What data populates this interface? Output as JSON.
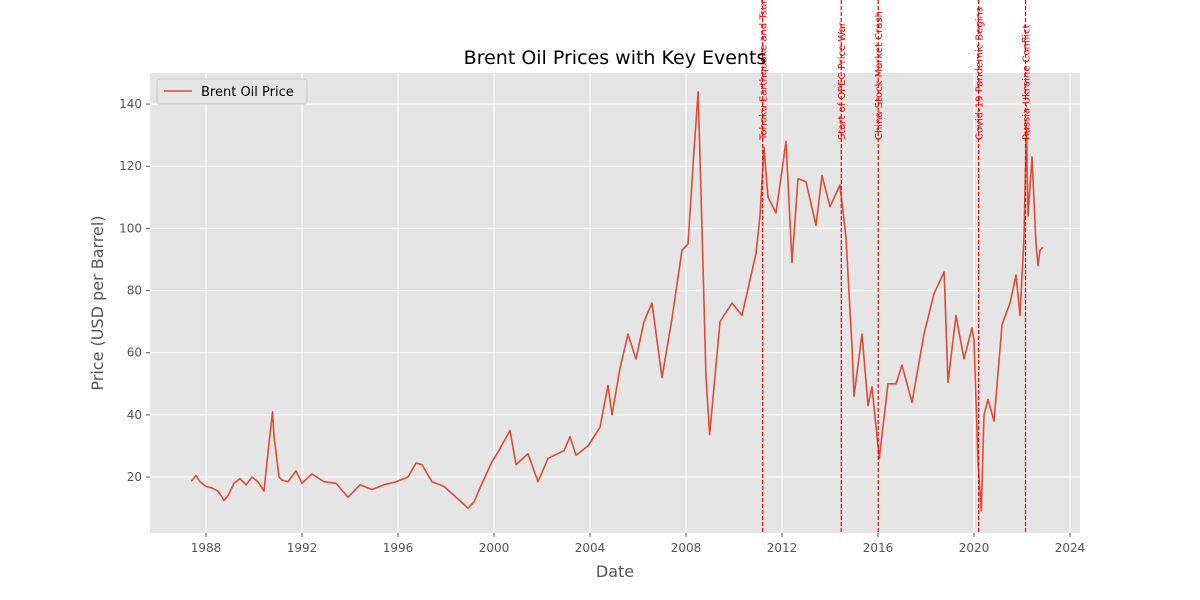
{
  "chart_data": {
    "type": "line",
    "title": "Brent Oil Prices with Key Events",
    "xlabel": "Date",
    "ylabel": "Price (USD per Barrel)",
    "xlim": [
      "1985-09",
      "2024-06"
    ],
    "ylim": [
      2,
      150
    ],
    "x_ticks": [
      "1988",
      "1992",
      "1996",
      "2000",
      "2004",
      "2008",
      "2012",
      "2016",
      "2020",
      "2024"
    ],
    "y_ticks": [
      20,
      40,
      60,
      80,
      100,
      120,
      140
    ],
    "grid": true,
    "legend_position": "top-left",
    "series": [
      {
        "name": "Brent Oil Price",
        "color": "#e24a33",
        "points": [
          [
            "1987-05-20",
            18.6
          ],
          [
            "1987-08",
            20.5
          ],
          [
            "1987-10",
            18.5
          ],
          [
            "1988-01",
            17.0
          ],
          [
            "1988-04",
            16.5
          ],
          [
            "1988-07",
            15.5
          ],
          [
            "1988-10",
            12.5
          ],
          [
            "1988-12",
            14.0
          ],
          [
            "1989-03",
            18.0
          ],
          [
            "1989-06",
            19.5
          ],
          [
            "1989-09",
            17.5
          ],
          [
            "1989-12",
            20.0
          ],
          [
            "1990-03",
            18.5
          ],
          [
            "1990-06",
            15.5
          ],
          [
            "1990-08",
            28.0
          ],
          [
            "1990-10-10",
            41.0
          ],
          [
            "1990-11",
            33.0
          ],
          [
            "1990-12",
            28.0
          ],
          [
            "1991-01-17",
            20.0
          ],
          [
            "1991-03",
            19.0
          ],
          [
            "1991-06",
            18.5
          ],
          [
            "1991-10",
            22.0
          ],
          [
            "1992-01",
            18.0
          ],
          [
            "1992-06",
            21.0
          ],
          [
            "1992-12",
            18.5
          ],
          [
            "1993-06",
            18.0
          ],
          [
            "1993-12",
            13.5
          ],
          [
            "1994-06",
            17.5
          ],
          [
            "1994-12",
            16.0
          ],
          [
            "1995-06",
            17.5
          ],
          [
            "1995-12",
            18.5
          ],
          [
            "1996-06",
            20.0
          ],
          [
            "1996-10",
            24.5
          ],
          [
            "1997-01",
            24.0
          ],
          [
            "1997-06",
            18.5
          ],
          [
            "1997-12",
            17.0
          ],
          [
            "1998-06",
            13.5
          ],
          [
            "1998-12",
            10.0
          ],
          [
            "1999-03",
            12.0
          ],
          [
            "1999-06",
            16.5
          ],
          [
            "1999-12",
            25.0
          ],
          [
            "2000-03",
            28.0
          ],
          [
            "2000-09",
            35.0
          ],
          [
            "2000-12",
            24.0
          ],
          [
            "2001-06",
            27.5
          ],
          [
            "2001-11",
            18.5
          ],
          [
            "2002-04",
            26.0
          ],
          [
            "2002-12",
            28.5
          ],
          [
            "2003-03",
            33.0
          ],
          [
            "2003-06",
            27.0
          ],
          [
            "2003-12",
            30.0
          ],
          [
            "2004-06",
            36.0
          ],
          [
            "2004-10",
            49.5
          ],
          [
            "2004-12",
            40.0
          ],
          [
            "2005-04",
            55.0
          ],
          [
            "2005-08",
            66.0
          ],
          [
            "2005-12",
            58.0
          ],
          [
            "2006-04",
            70.0
          ],
          [
            "2006-08",
            76.0
          ],
          [
            "2007-01",
            52.0
          ],
          [
            "2007-06",
            71.0
          ],
          [
            "2007-11",
            93.0
          ],
          [
            "2008-02",
            95.0
          ],
          [
            "2008-05",
            125.0
          ],
          [
            "2008-07-03",
            143.9
          ],
          [
            "2008-09",
            100.0
          ],
          [
            "2008-11",
            52.0
          ],
          [
            "2008-12-26",
            33.7
          ],
          [
            "2009-02",
            42.0
          ],
          [
            "2009-06",
            70.0
          ],
          [
            "2009-12",
            76.0
          ],
          [
            "2010-05",
            72.0
          ],
          [
            "2010-12",
            92.0
          ],
          [
            "2011-02",
            104.0
          ],
          [
            "2011-04",
            126.0
          ],
          [
            "2011-06",
            110.0
          ],
          [
            "2011-10",
            105.0
          ],
          [
            "2012-03",
            128.0
          ],
          [
            "2012-06",
            89.0
          ],
          [
            "2012-09",
            116.0
          ],
          [
            "2013-01",
            115.0
          ],
          [
            "2013-06",
            101.0
          ],
          [
            "2013-09",
            117.0
          ],
          [
            "2014-01",
            107.0
          ],
          [
            "2014-06",
            114.0
          ],
          [
            "2014-09",
            97.0
          ],
          [
            "2014-12",
            62.0
          ],
          [
            "2015-01",
            46.0
          ],
          [
            "2015-05",
            66.0
          ],
          [
            "2015-08",
            43.0
          ],
          [
            "2015-10",
            49.0
          ],
          [
            "2016-01-20",
            26.0
          ],
          [
            "2016-06",
            50.0
          ],
          [
            "2016-10",
            50.0
          ],
          [
            "2017-01",
            56.0
          ],
          [
            "2017-06",
            44.0
          ],
          [
            "2017-12",
            66.0
          ],
          [
            "2018-05",
            79.0
          ],
          [
            "2018-10-03",
            86.0
          ],
          [
            "2018-12",
            50.5
          ],
          [
            "2019-04",
            72.0
          ],
          [
            "2019-08",
            58.0
          ],
          [
            "2019-12",
            68.0
          ],
          [
            "2020-01",
            64.0
          ],
          [
            "2020-03",
            25.0
          ],
          [
            "2020-04-21",
            9.1
          ],
          [
            "2020-06",
            40.0
          ],
          [
            "2020-08",
            45.0
          ],
          [
            "2020-11",
            38.0
          ],
          [
            "2021-03",
            69.0
          ],
          [
            "2021-07",
            76.0
          ],
          [
            "2021-10",
            85.0
          ],
          [
            "2021-12",
            72.0
          ],
          [
            "2022-02",
            97.0
          ],
          [
            "2022-03-08",
            133.2
          ],
          [
            "2022-04",
            104.0
          ],
          [
            "2022-06",
            123.0
          ],
          [
            "2022-08",
            95.0
          ],
          [
            "2022-09",
            88.0
          ],
          [
            "2022-10",
            93.0
          ],
          [
            "2022-11-14",
            93.9
          ]
        ]
      }
    ],
    "events": [
      {
        "label": "Tohoku Earthquake and Tsunami",
        "date": "2011-03-11",
        "color": "#ff0000"
      },
      {
        "label": "Start of OPEC Price War",
        "date": "2014-06-20",
        "color": "#ff0000"
      },
      {
        "label": "China Stock Market Crash",
        "date": "2016-01-04",
        "color": "#ff0000"
      },
      {
        "label": "Covid-19 Pandemic Begins",
        "date": "2020-03-11",
        "color": "#ff0000"
      },
      {
        "label": "Russia-Ukraine Conflict",
        "date": "2022-02-24",
        "color": "#ff0000"
      }
    ]
  }
}
